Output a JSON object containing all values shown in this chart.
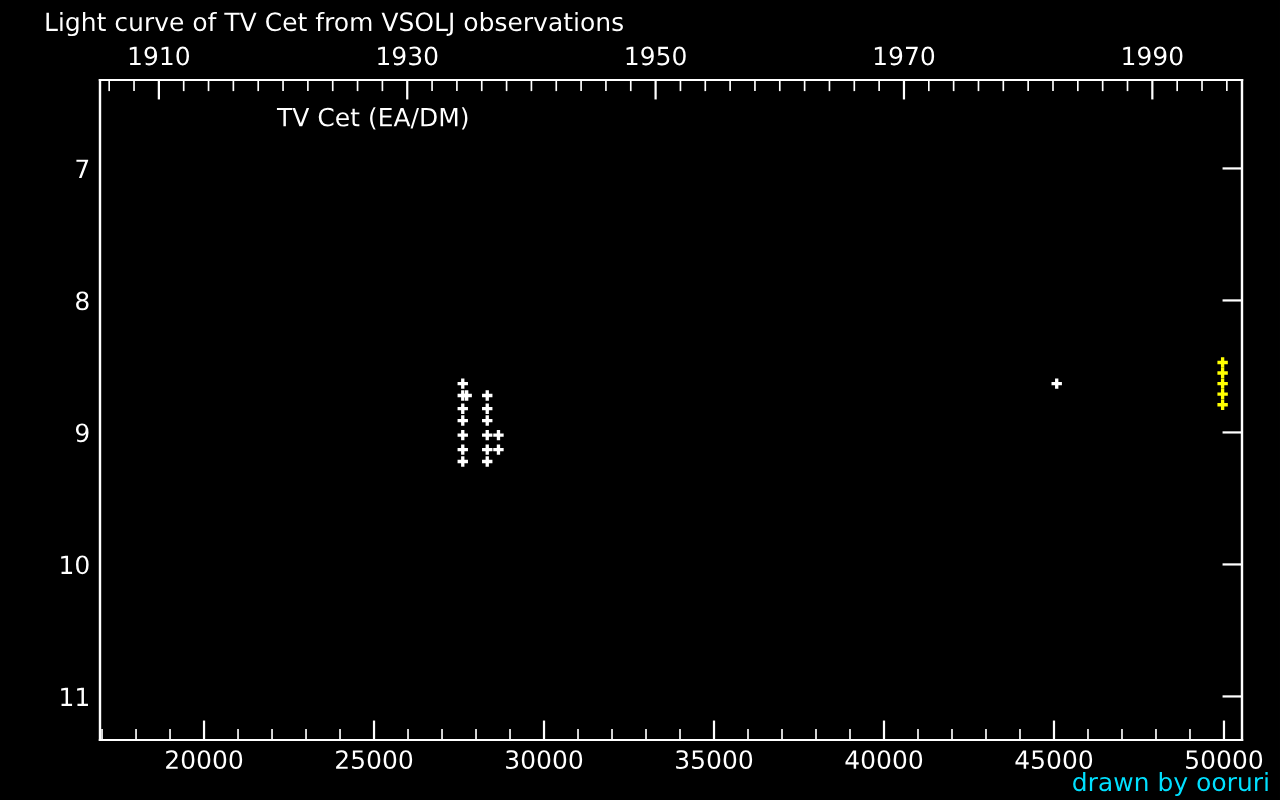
{
  "chart_data": {
    "type": "scatter",
    "title": "Light curve of TV Cet from VSOLJ observations",
    "subtitle": "TV Cet (EA/DM)",
    "annotations": [
      "drawn by ooruri"
    ],
    "marker": "cross",
    "grid": false,
    "legend": false,
    "series": [
      {
        "color": "#ffffff",
        "x": [
          27610,
          27610,
          27725,
          27610,
          27610,
          27610,
          27610,
          27610,
          28330,
          28330,
          28330,
          28330,
          28330,
          28330,
          28660,
          28660,
          45080
        ],
        "values": [
          8.63,
          8.72,
          8.72,
          8.82,
          8.91,
          9.02,
          9.13,
          9.22,
          8.72,
          8.82,
          8.91,
          9.02,
          9.13,
          9.22,
          9.02,
          9.13,
          8.63
        ]
      },
      {
        "color": "#ffff00",
        "x": [
          49960,
          49960,
          49960,
          49960,
          49960
        ],
        "values": [
          8.47,
          8.55,
          8.63,
          8.71,
          8.79
        ]
      }
    ],
    "xlim": [
      16940,
      50530
    ],
    "xticks": [
      20000,
      25000,
      30000,
      35000,
      40000,
      45000,
      50000
    ],
    "x2lim": [
      1905.26,
      1997.22
    ],
    "x2ticks": [
      1910,
      1930,
      1950,
      1970,
      1990
    ],
    "ylim": [
      11.33,
      6.33
    ],
    "yticks": [
      7,
      8,
      9,
      10,
      11
    ]
  }
}
